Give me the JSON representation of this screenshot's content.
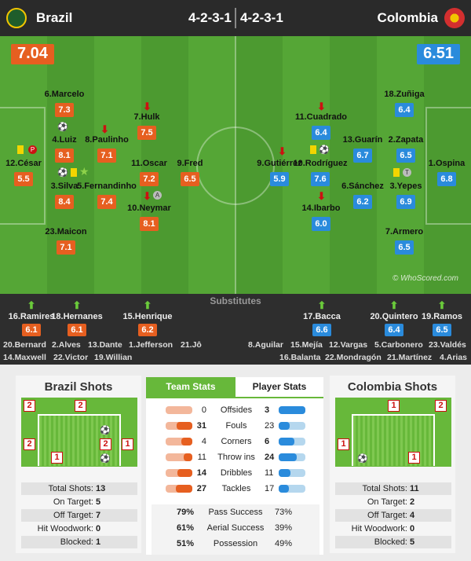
{
  "header": {
    "home_team": "Brazil",
    "away_team": "Colombia",
    "home_formation": "4-2-3-1",
    "away_formation": "4-2-3-1",
    "home_rating": "7.04",
    "away_rating": "6.51"
  },
  "colors": {
    "home": "#e65f20",
    "away": "#2a8bdc",
    "pitch": "#4c9a30",
    "accent": "#67b83a"
  },
  "home_players": [
    {
      "name": "6.Marcelo",
      "rating": "7.3"
    },
    {
      "name": "7.Hulk",
      "rating": "7.5"
    },
    {
      "name": "4.Luiz",
      "rating": "8.1"
    },
    {
      "name": "8.Paulinho",
      "rating": "7.1"
    },
    {
      "name": "12.César",
      "rating": "5.5"
    },
    {
      "name": "11.Oscar",
      "rating": "7.2"
    },
    {
      "name": "9.Fred",
      "rating": "6.5"
    },
    {
      "name": "3.Silva",
      "rating": "8.4"
    },
    {
      "name": "5.Fernandinho",
      "rating": "7.4"
    },
    {
      "name": "10.Neymar",
      "rating": "8.1"
    },
    {
      "name": "23.Maicon",
      "rating": "7.1"
    }
  ],
  "away_players": [
    {
      "name": "18.Zuñiga",
      "rating": "6.4"
    },
    {
      "name": "11.Cuadrado",
      "rating": "6.4"
    },
    {
      "name": "13.Guarín",
      "rating": "6.7"
    },
    {
      "name": "2.Zapata",
      "rating": "6.5"
    },
    {
      "name": "9.Gutiérrez",
      "rating": "5.9"
    },
    {
      "name": "10.Rodríguez",
      "rating": "7.6"
    },
    {
      "name": "1.Ospina",
      "rating": "6.8"
    },
    {
      "name": "6.Sánchez",
      "rating": "6.2"
    },
    {
      "name": "3.Yepes",
      "rating": "6.9"
    },
    {
      "name": "14.Ibarbo",
      "rating": "6.0"
    },
    {
      "name": "7.Armero",
      "rating": "6.5"
    }
  ],
  "copyright": "© WhoScored.com",
  "substitutes": {
    "title": "Substitutes",
    "home_used": [
      {
        "name": "16.Ramires",
        "rating": "6.1"
      },
      {
        "name": "18.Hernanes",
        "rating": "6.1"
      },
      {
        "name": "15.Henrique",
        "rating": "6.2"
      }
    ],
    "away_used": [
      {
        "name": "17.Bacca",
        "rating": "6.6"
      },
      {
        "name": "20.Quintero",
        "rating": "6.4"
      },
      {
        "name": "19.Ramos",
        "rating": "6.5"
      }
    ],
    "home_bench_row1": [
      "20.Bernard",
      "2.Alves",
      "13.Dante",
      "1.Jefferson",
      "21.Jô"
    ],
    "home_bench_row2": [
      "14.Maxwell",
      "22.Victor",
      "19.Willian"
    ],
    "away_bench_row1": [
      "8.Aguilar",
      "15.Mejía",
      "12.Vargas",
      "5.Carbonero",
      "23.Valdés"
    ],
    "away_bench_row2": [
      "16.Balanta",
      "22.Mondragón",
      "21.Martínez",
      "4.Arias"
    ]
  },
  "home_shots": {
    "title": "Brazil Shots",
    "zone_counts": [
      "2",
      "2",
      "2",
      "2",
      "1",
      "1"
    ],
    "labels": [
      "Total Shots:",
      "On Target:",
      "Off Target:",
      "Hit Woodwork:",
      "Blocked:"
    ],
    "values": [
      "13",
      "5",
      "7",
      "0",
      "1"
    ]
  },
  "away_shots": {
    "title": "Colombia Shots",
    "zone_counts": [
      "1",
      "2",
      "1",
      "1"
    ],
    "labels": [
      "Total Shots:",
      "On Target:",
      "Off Target:",
      "Hit Woodwork:",
      "Blocked:"
    ],
    "values": [
      "11",
      "2",
      "4",
      "0",
      "5"
    ]
  },
  "tabs": {
    "team_stats": "Team Stats",
    "player_stats": "Player Stats"
  },
  "team_stats": [
    {
      "label": "Offsides",
      "home": "0",
      "away": "3",
      "hv": 0,
      "av": 3
    },
    {
      "label": "Fouls",
      "home": "31",
      "away": "23",
      "hv": 31,
      "av": 23
    },
    {
      "label": "Corners",
      "home": "4",
      "away": "6",
      "hv": 4,
      "av": 6
    },
    {
      "label": "Throw ins",
      "home": "11",
      "away": "24",
      "hv": 11,
      "av": 24
    },
    {
      "label": "Dribbles",
      "home": "14",
      "away": "11",
      "hv": 14,
      "av": 11
    },
    {
      "label": "Tackles",
      "home": "27",
      "away": "17",
      "hv": 27,
      "av": 17
    }
  ],
  "pct_stats": [
    {
      "home": "79%",
      "label": "Pass Success",
      "away": "73%"
    },
    {
      "home": "61%",
      "label": "Aerial Success",
      "away": "39%"
    },
    {
      "home": "51%",
      "label": "Possession",
      "away": "49%"
    }
  ]
}
